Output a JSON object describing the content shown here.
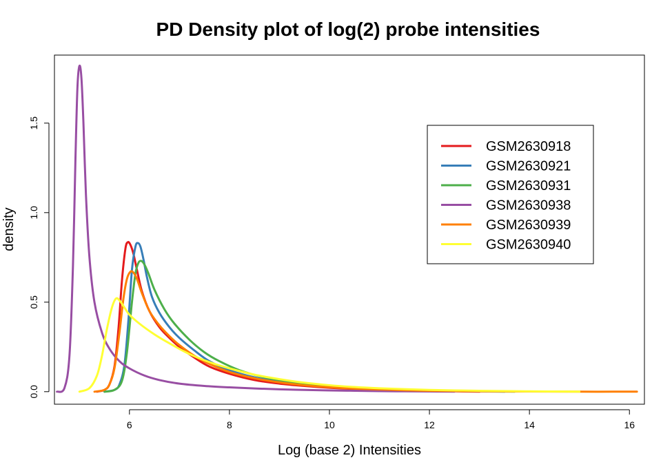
{
  "chart_data": {
    "type": "line",
    "title": "PD Density plot of log(2) probe intensities",
    "xlabel": "Log (base 2) Intensities",
    "ylabel": "density",
    "xlim": [
      4.5,
      16.3
    ],
    "ylim": [
      -0.07,
      1.88
    ],
    "x_ticks": [
      6,
      8,
      10,
      12,
      14,
      16
    ],
    "y_ticks": [
      0.0,
      0.5,
      1.0,
      1.5
    ],
    "x_tick_labels": [
      "6",
      "8",
      "10",
      "12",
      "14",
      "16"
    ],
    "y_tick_labels": [
      "0.0",
      "0.5",
      "1.0",
      "1.5"
    ],
    "legend_position": "top-right",
    "series": [
      {
        "name": "GSM2630918",
        "color": "#E41A1C",
        "x": [
          5.35,
          5.5,
          5.6,
          5.7,
          5.78,
          5.85,
          5.92,
          5.97,
          6.02,
          6.08,
          6.15,
          6.25,
          6.4,
          6.6,
          6.8,
          7.0,
          7.3,
          7.6,
          8.0,
          8.5,
          9.0,
          9.5,
          10.0,
          10.5,
          11.0,
          11.5,
          12.0,
          12.5,
          13.0
        ],
        "y": [
          0.0,
          0.01,
          0.04,
          0.14,
          0.35,
          0.62,
          0.8,
          0.835,
          0.82,
          0.77,
          0.68,
          0.56,
          0.45,
          0.36,
          0.3,
          0.25,
          0.19,
          0.14,
          0.1,
          0.065,
          0.045,
          0.032,
          0.022,
          0.015,
          0.01,
          0.006,
          0.004,
          0.002,
          0.0
        ]
      },
      {
        "name": "GSM2630921",
        "color": "#377EB8",
        "x": [
          5.5,
          5.7,
          5.8,
          5.9,
          5.98,
          6.05,
          6.12,
          6.17,
          6.22,
          6.28,
          6.35,
          6.45,
          6.6,
          6.8,
          7.0,
          7.3,
          7.6,
          8.0,
          8.5,
          9.0,
          9.5,
          10.0,
          10.5,
          11.0,
          11.5,
          12.0,
          12.5,
          13.0,
          13.5
        ],
        "y": [
          0.0,
          0.01,
          0.04,
          0.15,
          0.4,
          0.68,
          0.81,
          0.83,
          0.81,
          0.74,
          0.64,
          0.53,
          0.44,
          0.36,
          0.3,
          0.23,
          0.17,
          0.12,
          0.08,
          0.055,
          0.038,
          0.026,
          0.018,
          0.012,
          0.008,
          0.005,
          0.003,
          0.002,
          0.0
        ]
      },
      {
        "name": "GSM2630931",
        "color": "#4DAF4A",
        "x": [
          5.5,
          5.7,
          5.85,
          5.95,
          6.05,
          6.12,
          6.18,
          6.24,
          6.3,
          6.38,
          6.5,
          6.7,
          6.9,
          7.2,
          7.5,
          7.8,
          8.2,
          8.7,
          9.2,
          9.7,
          10.2,
          10.7,
          11.2,
          11.7,
          12.2,
          12.7,
          13.2,
          13.7
        ],
        "y": [
          0.0,
          0.01,
          0.06,
          0.22,
          0.5,
          0.66,
          0.72,
          0.73,
          0.71,
          0.66,
          0.57,
          0.46,
          0.38,
          0.29,
          0.22,
          0.17,
          0.12,
          0.08,
          0.056,
          0.039,
          0.027,
          0.019,
          0.013,
          0.009,
          0.006,
          0.004,
          0.002,
          0.0
        ]
      },
      {
        "name": "GSM2630938",
        "color": "#984EA3",
        "x": [
          4.55,
          4.7,
          4.8,
          4.87,
          4.92,
          4.96,
          5.0,
          5.04,
          5.08,
          5.13,
          5.2,
          5.3,
          5.45,
          5.6,
          5.8,
          6.0,
          6.3,
          6.6,
          7.0,
          7.5,
          8.0,
          8.5,
          9.0,
          9.5,
          10.0,
          10.5,
          11.0,
          11.5,
          12.0,
          12.5
        ],
        "y": [
          0.0,
          0.02,
          0.2,
          0.7,
          1.3,
          1.7,
          1.82,
          1.75,
          1.5,
          1.1,
          0.75,
          0.5,
          0.33,
          0.24,
          0.17,
          0.13,
          0.09,
          0.065,
          0.045,
          0.032,
          0.024,
          0.018,
          0.013,
          0.01,
          0.007,
          0.005,
          0.003,
          0.002,
          0.001,
          0.0
        ]
      },
      {
        "name": "GSM2630939",
        "color": "#FF7F00",
        "x": [
          5.3,
          5.5,
          5.6,
          5.7,
          5.8,
          5.88,
          5.95,
          6.02,
          6.08,
          6.15,
          6.25,
          6.4,
          6.6,
          6.8,
          7.0,
          7.3,
          7.6,
          8.0,
          8.5,
          9.0,
          9.5,
          10.0,
          10.5,
          11.0,
          11.5,
          12.0,
          13.0,
          14.0,
          15.0,
          16.0,
          16.15
        ],
        "y": [
          0.0,
          0.01,
          0.04,
          0.13,
          0.33,
          0.52,
          0.63,
          0.67,
          0.665,
          0.63,
          0.55,
          0.45,
          0.37,
          0.31,
          0.26,
          0.2,
          0.155,
          0.11,
          0.075,
          0.052,
          0.036,
          0.025,
          0.017,
          0.012,
          0.008,
          0.005,
          0.002,
          0.001,
          0.0,
          0.0,
          0.0
        ]
      },
      {
        "name": "GSM2630940",
        "color": "#FFFF33",
        "x": [
          5.0,
          5.2,
          5.35,
          5.45,
          5.55,
          5.65,
          5.73,
          5.8,
          5.9,
          6.0,
          6.2,
          6.5,
          6.8,
          7.2,
          7.6,
          8.0,
          8.5,
          9.0,
          9.5,
          10.0,
          10.5,
          11.0,
          11.5,
          12.0,
          12.5,
          13.0,
          14.0,
          15.0
        ],
        "y": [
          0.0,
          0.02,
          0.09,
          0.2,
          0.35,
          0.47,
          0.52,
          0.51,
          0.47,
          0.43,
          0.38,
          0.32,
          0.27,
          0.21,
          0.165,
          0.13,
          0.095,
          0.07,
          0.05,
          0.036,
          0.026,
          0.019,
          0.014,
          0.01,
          0.007,
          0.005,
          0.002,
          0.0
        ]
      }
    ]
  }
}
